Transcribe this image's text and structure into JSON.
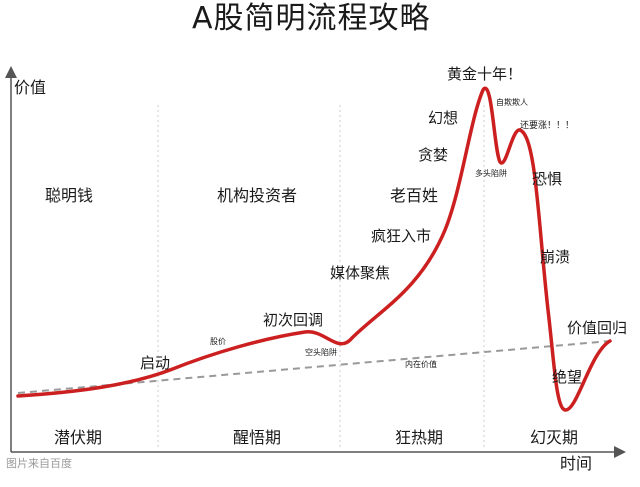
{
  "title": "A股简明流程攻略",
  "axes": {
    "y_label": "价值",
    "x_label": "时间"
  },
  "phases": [
    {
      "label": "潜伏期",
      "participants": "聪明钱"
    },
    {
      "label": "醒悟期",
      "participants": "机构投资者"
    },
    {
      "label": "狂热期",
      "participants": "老百姓"
    },
    {
      "label": "幻灭期",
      "participants": ""
    }
  ],
  "curve_labels": {
    "start": "启动",
    "bear_trap_small": "股价",
    "first_pullback": "初次回调",
    "bear_trap": "空头陷阱",
    "media": "媒体聚焦",
    "frenzy": "疯狂入市",
    "greed": "贪婪",
    "fantasy": "幻想",
    "peak": "黄金十年！",
    "self_deception": "自欺欺人",
    "bull_trap": "多头陷阱",
    "still_rising": "还要涨！！！",
    "fear": "恐惧",
    "collapse": "崩溃",
    "despair": "绝望",
    "return_to_value": "价值回归",
    "intrinsic_value": "内在价值"
  },
  "footer": "图片来自百度",
  "colors": {
    "curve": "#cc1f1f",
    "value_line": "#999999",
    "axis": "#555555",
    "divider": "#cccccc"
  }
}
